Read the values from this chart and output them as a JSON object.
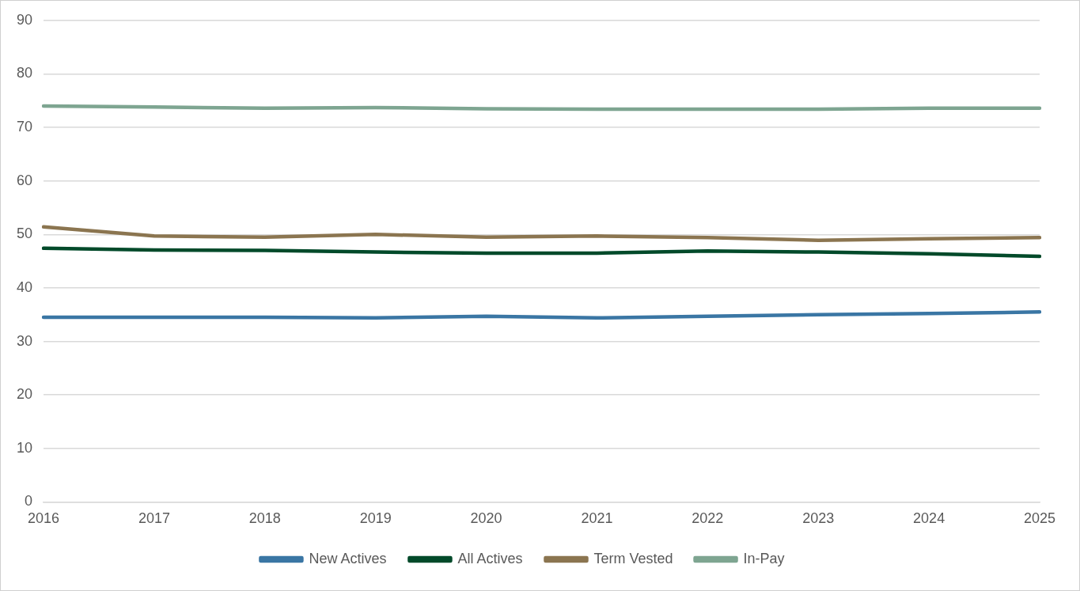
{
  "chart_data": {
    "type": "line",
    "categories": [
      "2016",
      "2017",
      "2018",
      "2019",
      "2020",
      "2021",
      "2022",
      "2023",
      "2024",
      "2025"
    ],
    "series": [
      {
        "name": "New Actives",
        "color": "#3a76a4",
        "values": [
          34.5,
          34.5,
          34.5,
          34.4,
          34.7,
          34.4,
          34.7,
          35.0,
          35.2,
          35.5
        ]
      },
      {
        "name": "All Actives",
        "color": "#024a2a",
        "values": [
          47.4,
          47.1,
          47.0,
          46.7,
          46.5,
          46.5,
          46.9,
          46.7,
          46.4,
          45.9
        ]
      },
      {
        "name": "Term Vested",
        "color": "#8b7550",
        "values": [
          51.4,
          49.7,
          49.5,
          50.0,
          49.5,
          49.7,
          49.4,
          48.9,
          49.2,
          49.4
        ]
      },
      {
        "name": "In-Pay",
        "color": "#7ea591",
        "values": [
          74.0,
          73.8,
          73.6,
          73.7,
          73.5,
          73.4,
          73.4,
          73.4,
          73.6,
          73.6
        ]
      }
    ],
    "ylim": [
      0,
      90
    ],
    "yticks": [
      0,
      10,
      20,
      30,
      40,
      50,
      60,
      70,
      80,
      90
    ],
    "grid": "y",
    "legend": "bottom",
    "marker": "none",
    "line_style": "solid"
  }
}
